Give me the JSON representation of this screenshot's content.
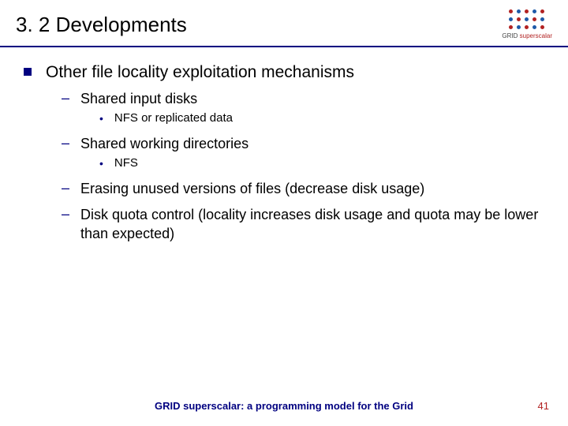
{
  "header": {
    "title": "3. 2 Developments",
    "logo_text_a": "GRID ",
    "logo_text_b": "superscalar"
  },
  "main": {
    "item": "Other file locality exploitation mechanisms",
    "subs": [
      {
        "text": "Shared input disks",
        "details": [
          "NFS or replicated data"
        ]
      },
      {
        "text": "Shared working directories",
        "details": [
          "NFS"
        ]
      },
      {
        "text": "Erasing unused versions of files (decrease disk usage)",
        "details": []
      },
      {
        "text": "Disk quota control (locality increases disk usage and quota may be lower than expected)",
        "details": []
      }
    ]
  },
  "footer": {
    "text": "GRID superscalar: a programming model for the Grid",
    "page": "41"
  },
  "colors": {
    "rule": "#000080",
    "accent_red": "#b22222"
  }
}
